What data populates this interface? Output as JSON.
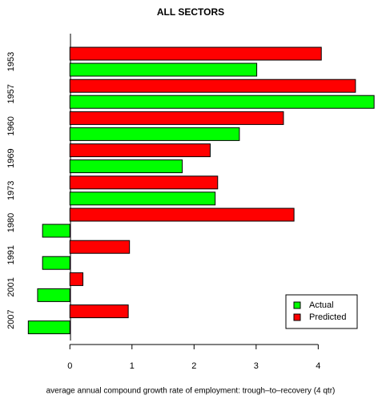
{
  "chart_data": {
    "type": "barh",
    "title": "ALL SECTORS",
    "x_label": "average annual compound growth rate of employment: trough–to–recovery (4 qtr)",
    "categories": [
      "1953",
      "1957",
      "1960",
      "1969",
      "1973",
      "1980",
      "1991",
      "2001",
      "2007"
    ],
    "series": [
      {
        "name": "Actual",
        "color": "#00ff00",
        "values": [
          3.01,
          4.9,
          2.73,
          1.81,
          2.34,
          -0.44,
          -0.44,
          -0.52,
          -0.67
        ]
      },
      {
        "name": "Predicted",
        "color": "#ff0000",
        "values": [
          4.05,
          4.6,
          3.44,
          2.26,
          2.38,
          3.61,
          0.96,
          0.21,
          0.94
        ]
      }
    ],
    "xlim": [
      -0.7,
      4.95
    ],
    "xticks": [
      0,
      1,
      2,
      3,
      4
    ],
    "legend": "bottom-right"
  }
}
